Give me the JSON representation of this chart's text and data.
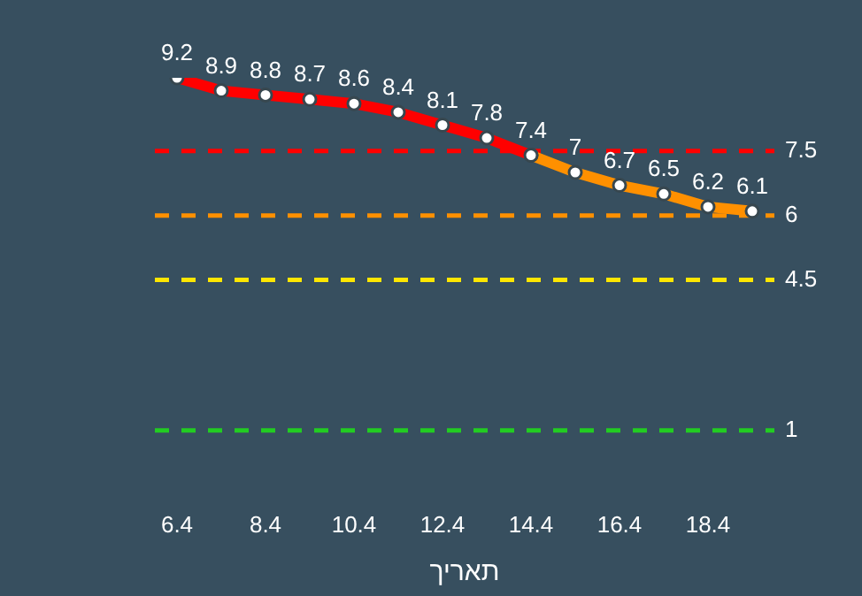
{
  "chart_data": {
    "type": "line",
    "xlabel": "תאריך",
    "categories": [
      "6.4",
      null,
      "8.4",
      null,
      "10.4",
      null,
      "12.4",
      null,
      "14.4",
      null,
      "16.4",
      null,
      "18.4",
      null
    ],
    "series": [
      {
        "color": "#ff0000",
        "values": [
          9.2,
          8.9,
          8.8,
          8.7,
          8.6,
          8.4,
          8.1,
          7.8,
          7.4,
          null,
          null,
          null,
          null,
          null
        ],
        "value_labels": [
          "9.2",
          "8.9",
          "8.8",
          "8.7",
          "8.6",
          "8.4",
          "8.1",
          "7.8",
          "7.4",
          null,
          null,
          null,
          null,
          null
        ]
      },
      {
        "color": "#ff9000",
        "values": [
          null,
          null,
          null,
          null,
          null,
          null,
          null,
          null,
          7.4,
          7,
          6.7,
          6.5,
          6.2,
          6.1
        ],
        "value_labels": [
          null,
          null,
          null,
          null,
          null,
          null,
          null,
          null,
          null,
          "7",
          "6.7",
          "6.5",
          "6.2",
          "6.1"
        ]
      }
    ],
    "marker": "circle",
    "grid": false,
    "legend": false,
    "ref_lines": [
      {
        "axis": "y",
        "value": 7.5,
        "label": "7.5",
        "color": "#ff0000",
        "line_style": "dashed"
      },
      {
        "axis": "y",
        "value": 6,
        "label": "6",
        "color": "#ff9000",
        "line_style": "dashed"
      },
      {
        "axis": "y",
        "value": 4.5,
        "label": "4.5",
        "color": "#ffe600",
        "line_style": "dashed"
      },
      {
        "axis": "y",
        "value": 1,
        "label": "1",
        "color": "#22cc22",
        "line_style": "dashed"
      }
    ]
  }
}
